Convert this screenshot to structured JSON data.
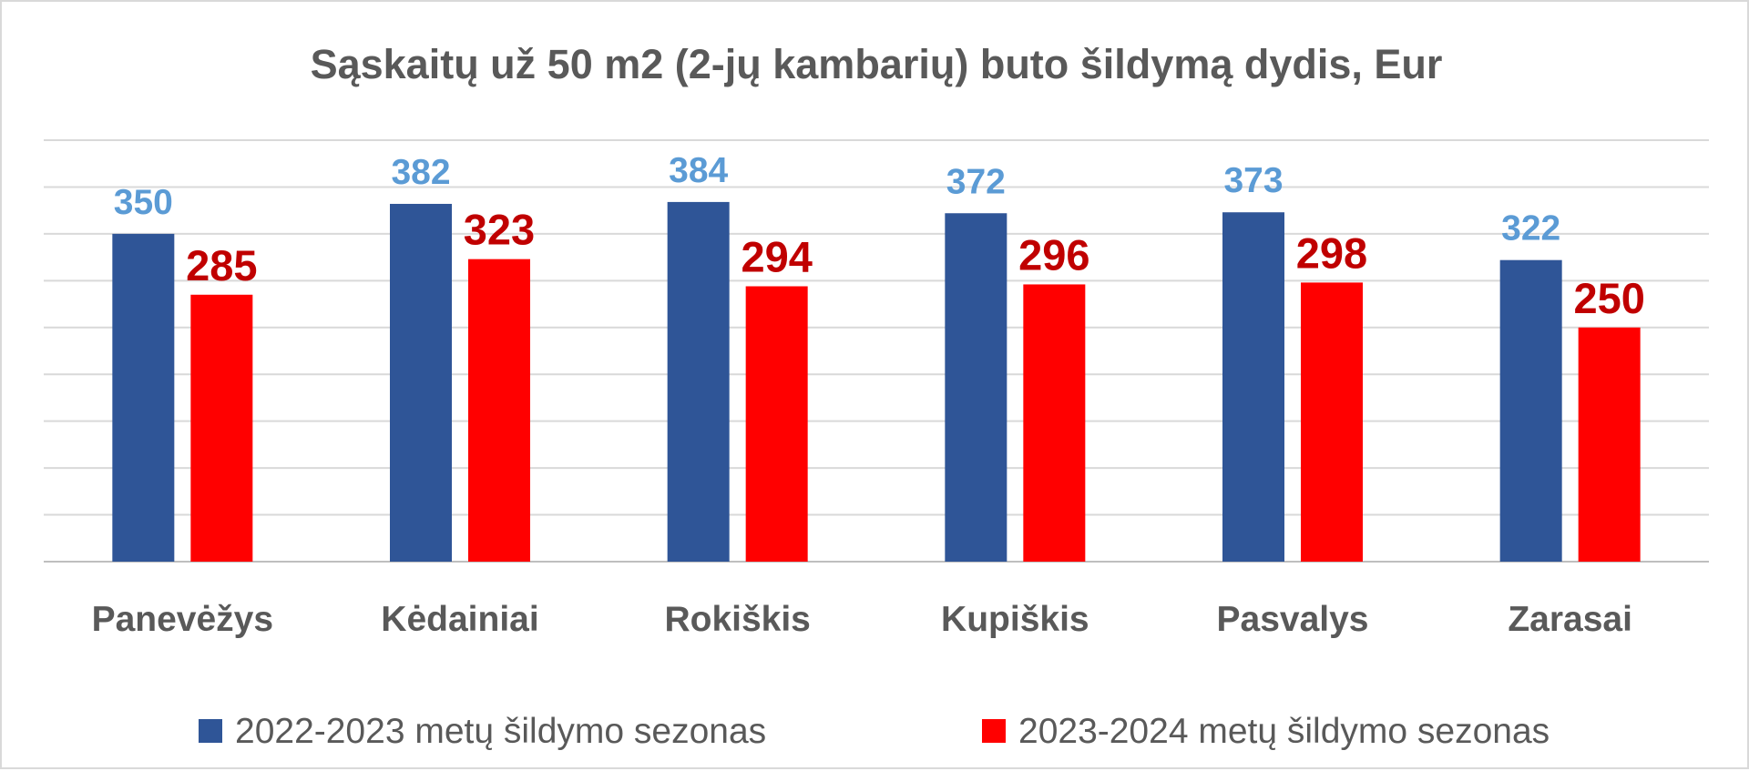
{
  "chart_data": {
    "type": "bar",
    "title": "Sąskaitų už 50 m2 (2-jų kambarių) buto šildymą dydis, Eur",
    "categories": [
      "Panevėžys",
      "Kėdainiai",
      "Rokiškis",
      "Kupiškis",
      "Pasvalys",
      "Zarasai"
    ],
    "series": [
      {
        "name": "2022-2023 metų šildymo sezonas",
        "values": [
          350,
          382,
          384,
          372,
          373,
          322
        ],
        "color": "#2f5597",
        "label_color": "#5b9bd5"
      },
      {
        "name": "2023-2024 metų šildymo sezonas",
        "values": [
          285,
          323,
          294,
          296,
          298,
          250
        ],
        "color": "#ff0000",
        "label_color": "#c00000"
      }
    ],
    "ylim": [
      0,
      450
    ],
    "grid_step": 50,
    "grid": true,
    "y_axis_labels_visible": false,
    "legend": "bottom"
  }
}
